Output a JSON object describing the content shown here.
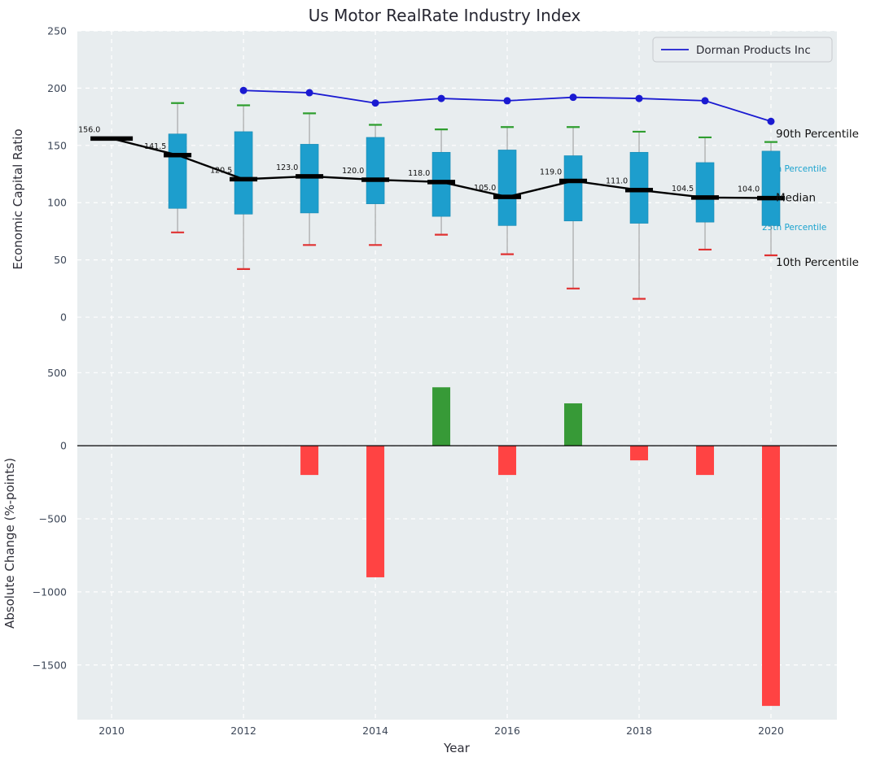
{
  "title": "Us Motor RealRate Industry Index",
  "legend": {
    "label": "Dorman Products Inc"
  },
  "annotations": [
    {
      "text": "90th Percentile",
      "y": 160,
      "color": "black",
      "layer": "front"
    },
    {
      "text": "75th Percentile",
      "y": 130,
      "color": "accent",
      "layer": "back"
    },
    {
      "text": "Median",
      "y": 104.5,
      "color": "black",
      "layer": "front"
    },
    {
      "text": "25th Percentile",
      "y": 79,
      "color": "accent",
      "layer": "back"
    },
    {
      "text": "10th Percentile",
      "y": 48,
      "color": "black",
      "layer": "front"
    }
  ],
  "colors": {
    "plot_bg": "#e8edef",
    "grid": "#ffffff",
    "tick": "#3d4758",
    "box": "#1d9ecd",
    "box_edge": "#1789b2",
    "median": "#000000",
    "company_line": "#1a1ad1",
    "cap_top": "#2f9e2f",
    "cap_bottom": "#e03131",
    "whisker": "#9a9a9a",
    "bar_positive": "#379a37",
    "bar_negative": "#ff4343",
    "annotation_accent": "#1ba3cf",
    "annotation_black": "#111111"
  },
  "chart_data": [
    {
      "type": "boxplot+line",
      "title": "Us Motor RealRate Industry Index",
      "ylabel": "Economic Capital Ratio",
      "ylim": [
        -44,
        250
      ],
      "yticks": [
        0,
        50,
        100,
        150,
        200,
        250
      ],
      "xlim": [
        2009.48,
        2021.0
      ],
      "xticks": [
        2010,
        2012,
        2014,
        2016,
        2018,
        2020
      ],
      "grid": true,
      "legend_position": "upper right",
      "years": [
        2010,
        2011,
        2012,
        2013,
        2014,
        2015,
        2016,
        2017,
        2018,
        2019,
        2020
      ],
      "median": [
        156.0,
        141.5,
        120.5,
        123.0,
        120.0,
        118.0,
        105.0,
        119.0,
        111.0,
        104.5,
        104.0
      ],
      "median_labels": [
        "156.0",
        "141.5",
        "120.5",
        "123.0",
        "120.0",
        "118.0",
        "105.0",
        "119.0",
        "111.0",
        "104.5",
        "104.0"
      ],
      "box_q1": [
        null,
        95,
        90,
        91,
        99,
        88,
        80,
        84,
        82,
        83,
        80
      ],
      "box_q3": [
        null,
        160,
        162,
        151,
        157,
        144,
        146,
        141,
        144,
        135,
        145
      ],
      "whisker_high": [
        null,
        187,
        185,
        178,
        168,
        164,
        166,
        166,
        162,
        157,
        153
      ],
      "whisker_low": [
        null,
        74,
        42,
        63,
        63,
        72,
        55,
        25,
        16,
        59,
        54
      ],
      "series": [
        {
          "name": "Dorman Products Inc",
          "x": [
            2012,
            2013,
            2014,
            2015,
            2016,
            2017,
            2018,
            2019,
            2020
          ],
          "values": [
            198,
            196,
            187,
            191,
            189,
            192,
            191,
            189,
            171
          ]
        }
      ]
    },
    {
      "type": "bar",
      "ylabel": "Absolute Change (%-points)",
      "xlabel": "Year",
      "ylim": [
        -1874,
        535
      ],
      "yticks": [
        500,
        0,
        -500,
        -1000,
        -1500
      ],
      "xticks": [
        2010,
        2012,
        2014,
        2016,
        2018,
        2020
      ],
      "grid": true,
      "categories": [
        2013,
        2014,
        2015,
        2016,
        2017,
        2018,
        2019,
        2020
      ],
      "values": [
        -200,
        -900,
        400,
        -200,
        290,
        -100,
        -200,
        -1780
      ]
    }
  ]
}
